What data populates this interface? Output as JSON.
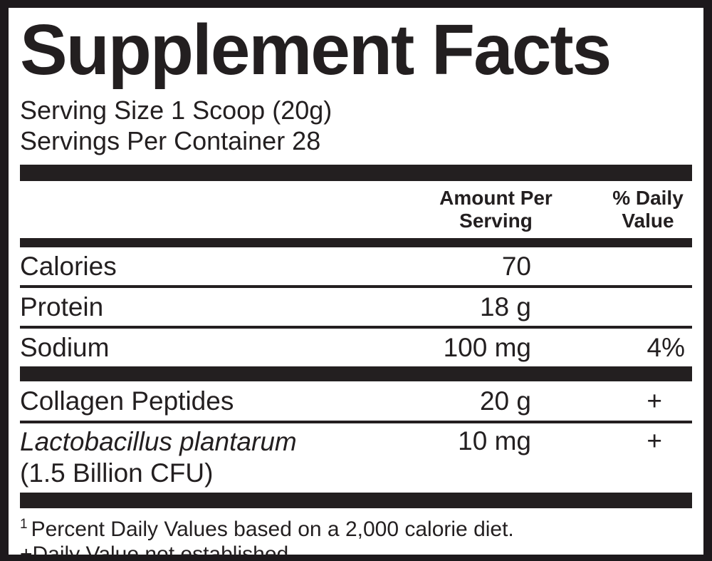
{
  "label": {
    "title": "Supplement Facts",
    "serving_size": "Serving Size 1 Scoop (20g)",
    "servings_per_container": "Servings Per Container 28",
    "columns": {
      "amount": "Amount Per Serving",
      "dv": "% Daily Value"
    },
    "rows": [
      {
        "name": "Calories",
        "amount": "70",
        "dv": ""
      },
      {
        "name": "Protein",
        "amount": "18 g",
        "dv": ""
      },
      {
        "name": "Sodium",
        "amount": "100 mg",
        "dv": "4%"
      },
      {
        "name": "Collagen Peptides",
        "amount": "20 g",
        "dv": "+"
      },
      {
        "name": "Lactobacillus plantarum",
        "name_note": "(1.5 Billion CFU)",
        "amount": "10 mg",
        "dv": "+"
      }
    ],
    "footnote_marker": "1",
    "footnotes": [
      "Percent Daily Values based on a 2,000 calorie diet.",
      "+Daily Value not established."
    ]
  },
  "colors": {
    "ink": "#231f20",
    "paper": "#ffffff",
    "frame": "#1d191c"
  }
}
